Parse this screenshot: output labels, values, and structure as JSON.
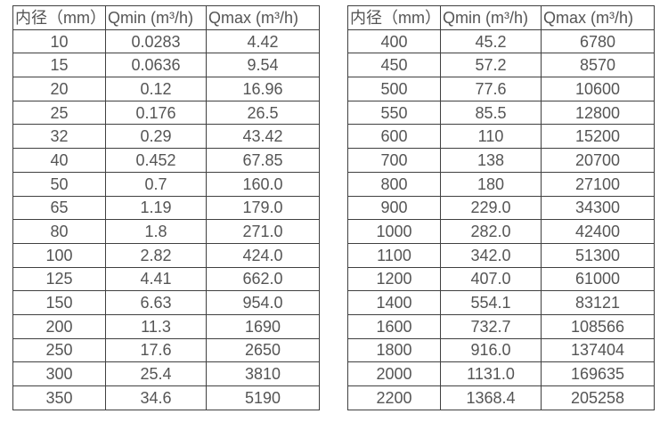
{
  "page": {
    "background_color": "#ffffff",
    "border_color": "#404040",
    "text_color": "#555555"
  },
  "tables": [
    {
      "name": "flow-table-small-diameters",
      "headers": [
        "内径（mm）",
        "Qmin (m³/h)",
        "Qmax (m³/h)"
      ],
      "rows": [
        [
          "10",
          "0.0283",
          "4.42"
        ],
        [
          "15",
          "0.0636",
          "9.54"
        ],
        [
          "20",
          "0.12",
          "16.96"
        ],
        [
          "25",
          "0.176",
          "26.5"
        ],
        [
          "32",
          "0.29",
          "43.42"
        ],
        [
          "40",
          "0.452",
          "67.85"
        ],
        [
          "50",
          "0.7",
          "160.0"
        ],
        [
          "65",
          "1.19",
          "179.0"
        ],
        [
          "80",
          "1.8",
          "271.0"
        ],
        [
          "100",
          "2.82",
          "424.0"
        ],
        [
          "125",
          "4.41",
          "662.0"
        ],
        [
          "150",
          "6.63",
          "954.0"
        ],
        [
          "200",
          "11.3",
          "1690"
        ],
        [
          "250",
          "17.6",
          "2650"
        ],
        [
          "300",
          "25.4",
          "3810"
        ],
        [
          "350",
          "34.6",
          "5190"
        ]
      ]
    },
    {
      "name": "flow-table-large-diameters",
      "headers": [
        "内径（mm）",
        "Qmin (m³/h)",
        "Qmax (m³/h)"
      ],
      "rows": [
        [
          "400",
          "45.2",
          "6780"
        ],
        [
          "450",
          "57.2",
          "8570"
        ],
        [
          "500",
          "77.6",
          "10600"
        ],
        [
          "550",
          "85.5",
          "12800"
        ],
        [
          "600",
          "110",
          "15200"
        ],
        [
          "700",
          "138",
          "20700"
        ],
        [
          "800",
          "180",
          "27100"
        ],
        [
          "900",
          "229.0",
          "34300"
        ],
        [
          "1000",
          "282.0",
          "42400"
        ],
        [
          "1100",
          "342.0",
          "51300"
        ],
        [
          "1200",
          "407.0",
          "61000"
        ],
        [
          "1400",
          "554.1",
          "83121"
        ],
        [
          "1600",
          "732.7",
          "108566"
        ],
        [
          "1800",
          "916.0",
          "137404"
        ],
        [
          "2000",
          "1131.0",
          "169635"
        ],
        [
          "2200",
          "1368.4",
          "205258"
        ]
      ]
    }
  ]
}
